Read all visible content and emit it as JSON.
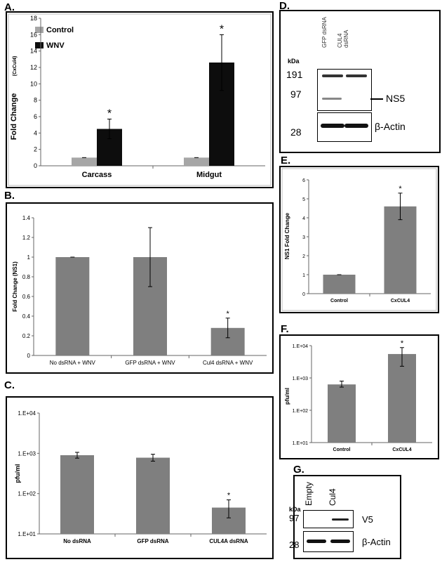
{
  "panel_labels": {
    "A": "A.",
    "B": "B.",
    "C": "C.",
    "D": "D.",
    "E": "E.",
    "F": "F.",
    "G": "G."
  },
  "colors": {
    "control": "#a6a6a6",
    "wnv": "#0d0d0d",
    "bar": "#7f7f7f",
    "frame": "#000000"
  },
  "chart_data": [
    {
      "id": "A",
      "type": "bar",
      "categories": [
        "Carcass",
        "Midgut"
      ],
      "series": [
        {
          "name": "Control",
          "values": [
            1,
            1
          ],
          "errors": [
            0,
            0
          ]
        },
        {
          "name": "WNV",
          "values": [
            4.5,
            12.6
          ],
          "errors": [
            1.2,
            3.4
          ]
        }
      ],
      "significance": [
        "*",
        "*"
      ],
      "ylabel": "Fold Change",
      "ylabel_sub": "(CxCul4)",
      "ylim": [
        0,
        18
      ],
      "yticks": [
        0,
        2,
        4,
        6,
        8,
        10,
        12,
        14,
        16,
        18
      ],
      "legend": "top-left",
      "grid": false
    },
    {
      "id": "B",
      "type": "bar",
      "categories": [
        "No dsRNA + WNV",
        "GFP dsRNA + WNV",
        "Cul4 dsRNA + WNV"
      ],
      "values": [
        1.0,
        1.0,
        0.28
      ],
      "errors": [
        0,
        0.3,
        0.1
      ],
      "significance": [
        "",
        "",
        "*"
      ],
      "ylabel": "Fold Change (NS1)",
      "ylim": [
        0,
        1.4
      ],
      "yticks": [
        "0",
        "0.2",
        "0.4",
        "0.6",
        "0.8",
        "1",
        "1.2",
        "1.4"
      ],
      "grid": false
    },
    {
      "id": "C",
      "type": "bar",
      "log_scale": true,
      "categories": [
        "No dsRNA",
        "GFP dsRNA",
        "CUL4A dsRNA"
      ],
      "values": [
        900,
        780,
        45
      ],
      "err_low": [
        760,
        640,
        25
      ],
      "err_high": [
        1060,
        950,
        70
      ],
      "significance": [
        "",
        "",
        "*"
      ],
      "ylabel": "pfu/ml",
      "ylim": [
        10,
        10000
      ],
      "yticks": [
        "1.E+01",
        "1.E+02",
        "1.E+03",
        "1.E+04"
      ],
      "grid": false
    },
    {
      "id": "E",
      "type": "bar",
      "categories": [
        "Control",
        "CxCUL4"
      ],
      "values": [
        1.0,
        4.6
      ],
      "errors": [
        0,
        0.7
      ],
      "significance": [
        "",
        "*"
      ],
      "ylabel": "NS1 Fold Change",
      "ylim": [
        0,
        6
      ],
      "yticks": [
        "0",
        "1",
        "2",
        "3",
        "4",
        "5",
        "6"
      ],
      "grid": false
    },
    {
      "id": "F",
      "type": "bar",
      "log_scale": true,
      "categories": [
        "Control",
        "CxCUL4"
      ],
      "values": [
        630,
        5500
      ],
      "err_low": [
        520,
        2300
      ],
      "err_high": [
        800,
        8700
      ],
      "significance": [
        "",
        "*"
      ],
      "ylabel": "pfu/ml",
      "ylim": [
        10,
        10000
      ],
      "yticks": [
        "1.E+01",
        "1.E+02",
        "1.E+03",
        "1.E+04"
      ],
      "grid": false
    }
  ],
  "blot_D": {
    "kda": "kDa",
    "lanes": [
      "GFP dsRNA",
      "CUL4 dsRNA"
    ],
    "markers": [
      "191",
      "97",
      "28"
    ],
    "bands": [
      "NS5",
      "β-Actin"
    ]
  },
  "blot_G": {
    "kda": "kDa",
    "lanes": [
      "Empty",
      "Cul4"
    ],
    "markers": [
      "97",
      "28"
    ],
    "bands": [
      "V5",
      "β-Actin"
    ]
  }
}
